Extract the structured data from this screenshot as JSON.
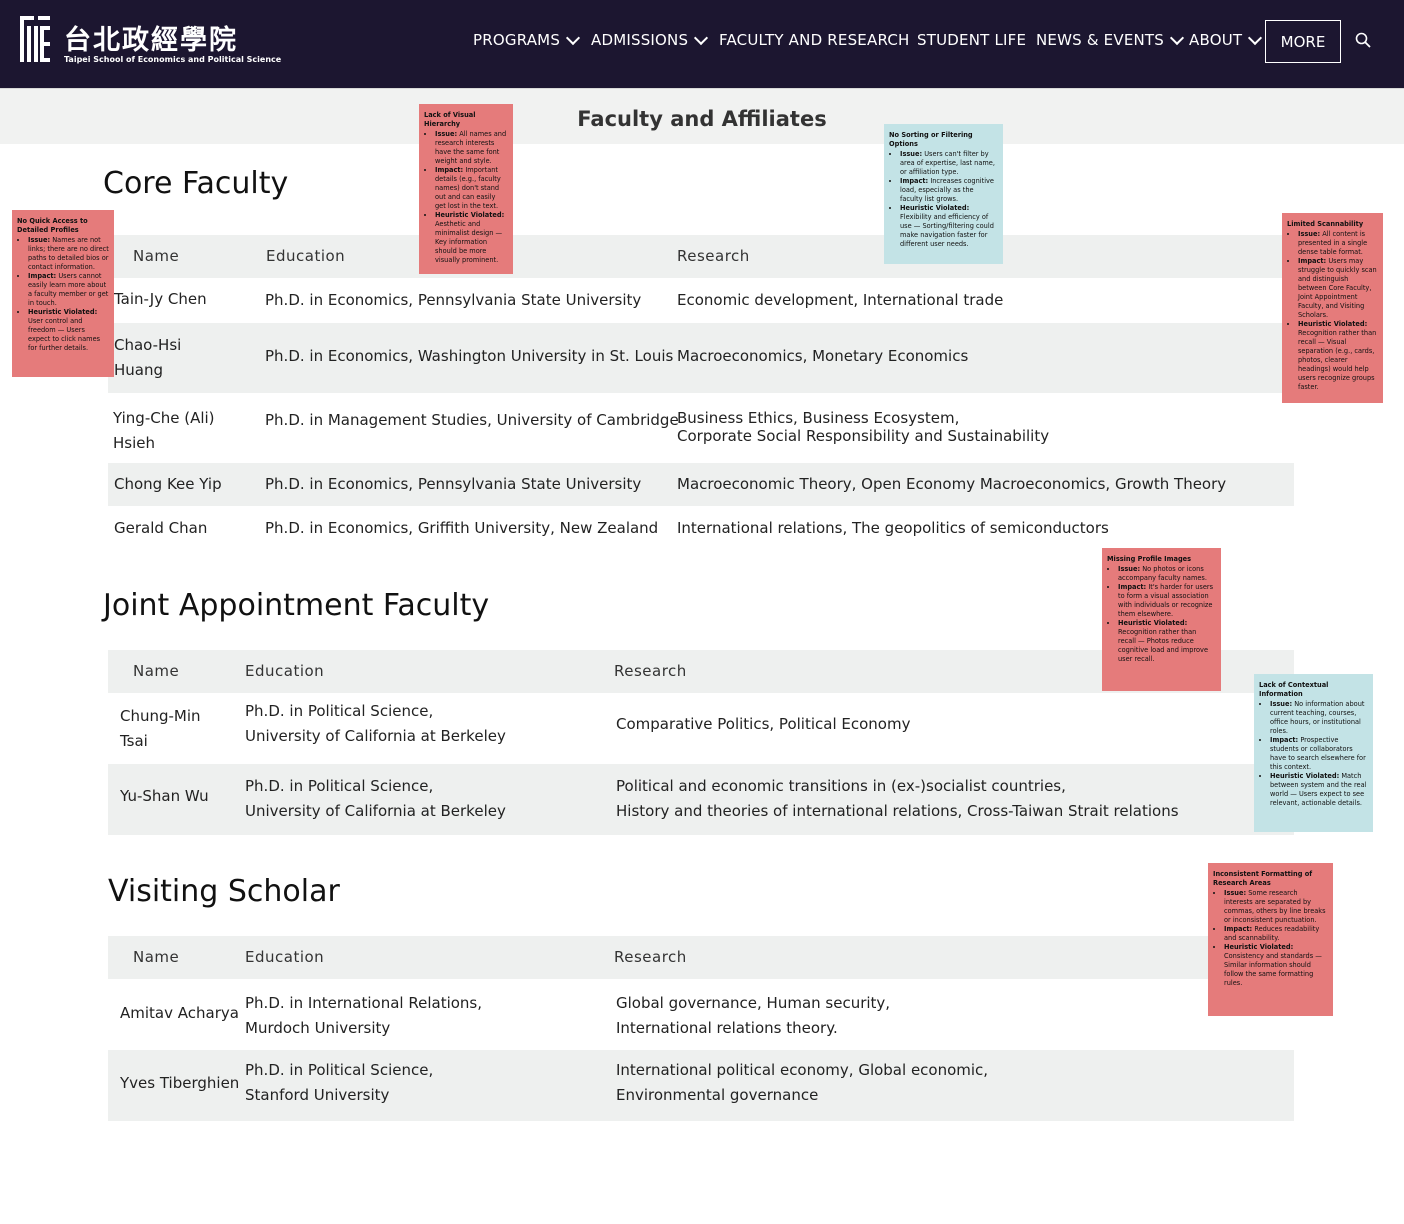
{
  "header": {
    "logo": {
      "chinese_name": "台北政經學院",
      "english_name": "Taipei School of Economics and Political Science"
    },
    "nav": [
      {
        "label": "PROGRAMS",
        "has_dropdown": true
      },
      {
        "label": "ADMISSIONS",
        "has_dropdown": true
      },
      {
        "label": "FACULTY AND RESEARCH",
        "has_dropdown": false
      },
      {
        "label": "STUDENT LIFE",
        "has_dropdown": false
      },
      {
        "label": "NEWS & EVENTS",
        "has_dropdown": true
      },
      {
        "label": "ABOUT",
        "has_dropdown": true
      }
    ],
    "more_label": "MORE",
    "search_icon": "search-icon",
    "colors": {
      "header_bg": "#1c1630",
      "band_bg": "#f1f2f1",
      "row_shade": "#eef0ef",
      "note_red": "#e57b7b",
      "note_teal": "#c3e3e6"
    }
  },
  "page": {
    "title": "Faculty and Affiliates"
  },
  "columns": {
    "name": "Name",
    "education": "Education",
    "research": "Research"
  },
  "core": {
    "title": "Core Faculty",
    "rows": [
      {
        "name": "Tain-Jy Chen",
        "education": "Ph.D. in Economics, Pennsylvania State University",
        "research": "Economic development, International trade"
      },
      {
        "name": "Chao-Hsi Huang",
        "name_l1": "Chao-Hsi",
        "name_l2": "Huang",
        "education": "Ph.D. in Economics, Washington University in St. Louis",
        "research": "Macroeconomics, Monetary Economics"
      },
      {
        "name": "Ying-Che (Ali) Hsieh",
        "name_l1": "Ying-Che (Ali)",
        "name_l2": "Hsieh",
        "education": "Ph.D. in Management Studies, University of Cambridge",
        "research_l1": "Business Ethics, Business Ecosystem,",
        "research_l2": "Corporate Social Responsibility and Sustainability"
      },
      {
        "name": "Chong Kee Yip",
        "education": "Ph.D. in Economics, Pennsylvania State University",
        "research": "Macroeconomic Theory, Open Economy Macroeconomics, Growth Theory"
      },
      {
        "name": "Gerald Chan",
        "education": "Ph.D. in Economics, Griffith University, New Zealand",
        "research": "International relations, The geopolitics of semiconductors"
      }
    ]
  },
  "joint": {
    "title": "Joint Appointment Faculty",
    "rows": [
      {
        "name_l1": "Chung-Min",
        "name_l2": "Tsai",
        "education_l1": "Ph.D. in Political Science,",
        "education_l2": "University of California at Berkeley",
        "research": "Comparative Politics, Political Economy"
      },
      {
        "name": "Yu-Shan Wu",
        "education_l1": "Ph.D. in Political Science,",
        "education_l2": "University of California at Berkeley",
        "research_l1": "Political and economic transitions in (ex-)socialist countries,",
        "research_l2": "History and theories of international relations, Cross-Taiwan Strait relations"
      }
    ]
  },
  "visiting": {
    "title": "Visiting Scholar",
    "rows": [
      {
        "name": "Amitav Acharya",
        "education_l1": "Ph.D. in International Relations,",
        "education_l2": "Murdoch University",
        "research_l1": "Global governance, Human security,",
        "research_l2": "International relations theory."
      },
      {
        "name": "Yves Tiberghien",
        "education_l1": "Ph.D. in Political Science,",
        "education_l2": "Stanford University",
        "research_l1": "International political economy, Global economic,",
        "research_l2": "Environmental governance"
      }
    ]
  },
  "notes": {
    "profiles": {
      "title": "No Quick Access to Detailed Profiles",
      "issue_label": "Issue:",
      "issue": "Names are not links; there are no direct paths to detailed bios or contact information.",
      "impact_label": "Impact:",
      "impact": "Users cannot easily learn more about a faculty member or get in touch.",
      "heuristic_label": "Heuristic Violated:",
      "heuristic": "User control and freedom — Users expect to click names for further details."
    },
    "hierarchy": {
      "title": "Lack of Visual Hierarchy",
      "issue_label": "Issue:",
      "issue": "All names and research interests have the same font weight and style.",
      "impact_label": "Impact:",
      "impact": "Important details (e.g., faculty names) don't stand out and can easily get lost in the text.",
      "heuristic_label": "Heuristic Violated:",
      "heuristic": "Aesthetic and minimalist design — Key information should be more visually prominent."
    },
    "sorting": {
      "title": "No Sorting or Filtering Options",
      "issue_label": "Issue:",
      "issue": "Users can't filter by area of expertise, last name, or affiliation type.",
      "impact_label": "Impact:",
      "impact": "Increases cognitive load, especially as the faculty list grows.",
      "heuristic_label": "Heuristic Violated:",
      "heuristic": "Flexibility and efficiency of use — Sorting/filtering could make navigation faster for different user needs."
    },
    "scannability": {
      "title": "Limited Scannability",
      "issue_label": "Issue:",
      "issue": "All content is presented in a single dense table format.",
      "impact_label": "Impact:",
      "impact": "Users may struggle to quickly scan and distinguish between Core Faculty, Joint Appointment Faculty, and Visiting Scholars.",
      "heuristic_label": "Heuristic Violated:",
      "heuristic": "Recognition rather than recall — Visual separation (e.g., cards, photos, clearer headings) would help users recognize groups faster."
    },
    "images": {
      "title": "Missing Profile Images",
      "issue_label": "Issue:",
      "issue": "No photos or icons accompany faculty names.",
      "impact_label": "Impact:",
      "impact": "It's harder for users to form a visual association with individuals or recognize them elsewhere.",
      "heuristic_label": "Heuristic Violated:",
      "heuristic": "Recognition rather than recall — Photos reduce cognitive load and improve user recall."
    },
    "context": {
      "title": "Lack of Contextual Information",
      "issue_label": "Issue:",
      "issue": "No information about current teaching, courses, office hours, or institutional roles.",
      "impact_label": "Impact:",
      "impact": "Prospective students or collaborators have to search elsewhere for this context.",
      "heuristic_label": "Heuristic Violated:",
      "heuristic": "Match between system and the real world — Users expect to see relevant, actionable details."
    },
    "formatting": {
      "title": "Inconsistent Formatting of Research Areas",
      "issue_label": "Issue:",
      "issue": "Some research interests are separated by commas, others by line breaks or inconsistent punctuation.",
      "impact_label": "Impact:",
      "impact": "Reduces readability and scannability.",
      "heuristic_label": "Heuristic Violated:",
      "heuristic": "Consistency and standards — Similar information should follow the same formatting rules."
    }
  }
}
